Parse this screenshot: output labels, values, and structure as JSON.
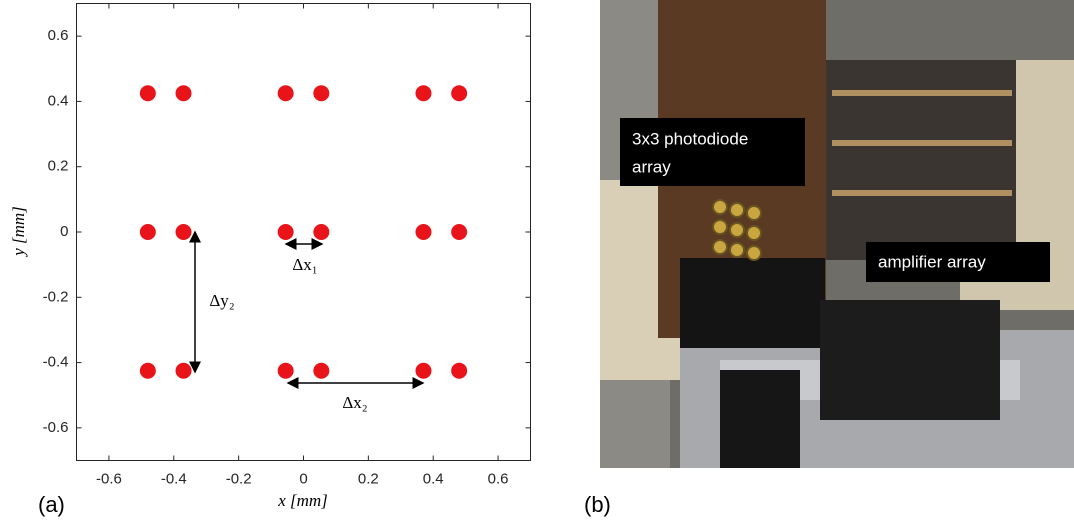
{
  "chart_data": {
    "type": "scatter",
    "x": [
      -0.48,
      -0.37,
      -0.055,
      0.055,
      0.37,
      0.48,
      -0.48,
      -0.37,
      -0.055,
      0.055,
      0.37,
      0.48,
      -0.48,
      -0.37,
      -0.055,
      0.055,
      0.37,
      0.48
    ],
    "values": [
      0.425,
      0.425,
      0.425,
      0.425,
      0.425,
      0.425,
      0,
      0,
      0,
      0,
      0,
      0,
      -0.425,
      -0.425,
      -0.425,
      -0.425,
      -0.425,
      -0.425
    ],
    "color": "#e8141a",
    "xlim": [
      -0.7,
      0.7
    ],
    "xticks": [
      -0.6,
      -0.4,
      -0.2,
      0,
      0.2,
      0.4,
      0.6
    ],
    "ylim": [
      -0.7,
      0.7
    ],
    "yticks": [
      -0.6,
      -0.4,
      -0.2,
      0,
      0.2,
      0.4,
      0.6
    ],
    "x_label": "x [mm]",
    "y_label": "y [mm]",
    "annotations": [
      "Δx₁",
      "Δx₂",
      "Δy₂"
    ]
  },
  "panels": [
    "(a)",
    "(b)"
  ],
  "photo": {
    "labels": [
      [
        "3x3 photodiode",
        "array"
      ],
      [
        "amplifier array"
      ]
    ]
  }
}
